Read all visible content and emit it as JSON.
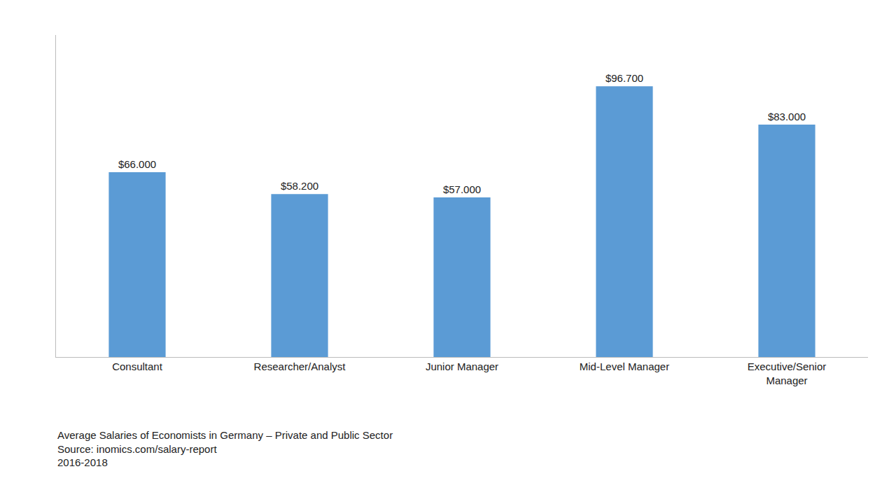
{
  "chart_data": {
    "type": "bar",
    "title": "Average Salaries of Economists in Germany – Private and Public Sector",
    "subtitle": "Source: inomics.com/salary-report",
    "annotations": [
      "2016-2018"
    ],
    "categories": [
      "Consultant",
      "Researcher/Analyst",
      "Junior Manager",
      "Mid-Level Manager",
      "Executive/Senior\nManager"
    ],
    "values": [
      66000,
      58200,
      57000,
      96700,
      83000
    ],
    "value_labels": [
      "$66.000",
      "$58.200",
      "$57.000",
      "$96.700",
      "$83.000"
    ],
    "data_labels": true,
    "color": "#5b9bd5",
    "ylim": [
      0,
      115000
    ],
    "grid": false,
    "tick_labels": "x"
  }
}
